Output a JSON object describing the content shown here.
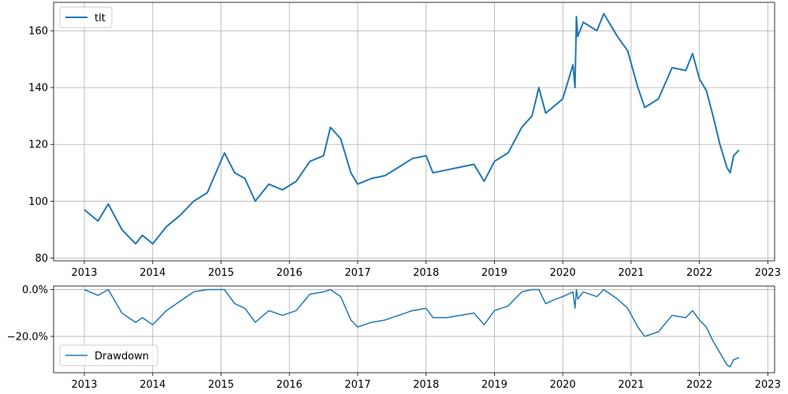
{
  "chart_data": [
    {
      "type": "line",
      "series": [
        {
          "name": "tlt",
          "x": [
            2013.0,
            2013.2,
            2013.35,
            2013.55,
            2013.75,
            2013.85,
            2014.0,
            2014.2,
            2014.4,
            2014.6,
            2014.8,
            2015.05,
            2015.2,
            2015.35,
            2015.5,
            2015.7,
            2015.9,
            2016.1,
            2016.3,
            2016.5,
            2016.6,
            2016.75,
            2016.9,
            2017.0,
            2017.2,
            2017.4,
            2017.6,
            2017.8,
            2018.0,
            2018.1,
            2018.3,
            2018.5,
            2018.7,
            2018.85,
            2019.0,
            2019.2,
            2019.4,
            2019.55,
            2019.65,
            2019.75,
            2019.9,
            2020.0,
            2020.15,
            2020.18,
            2020.2,
            2020.22,
            2020.3,
            2020.5,
            2020.6,
            2020.8,
            2020.95,
            2021.1,
            2021.2,
            2021.4,
            2021.6,
            2021.8,
            2021.9,
            2022.0,
            2022.1,
            2022.2,
            2022.3,
            2022.4,
            2022.45,
            2022.5,
            2022.58
          ],
          "values": [
            97,
            93,
            99,
            90,
            85,
            88,
            85,
            91,
            95,
            100,
            103,
            117,
            110,
            108,
            100,
            106,
            104,
            107,
            114,
            116,
            126,
            122,
            110,
            106,
            108,
            109,
            112,
            115,
            116,
            110,
            111,
            112,
            113,
            107,
            114,
            117,
            126,
            130,
            140,
            131,
            134,
            136,
            148,
            140,
            165,
            158,
            163,
            160,
            166,
            158,
            153,
            140,
            133,
            136,
            147,
            146,
            152,
            143,
            139,
            130,
            120,
            112,
            110,
            116,
            118
          ]
        }
      ],
      "legend": "upper-left",
      "grid": true,
      "xlim": [
        2012.55,
        2023.1
      ],
      "ylim": [
        79,
        170
      ],
      "xticks": [
        "2013",
        "2014",
        "2015",
        "2016",
        "2017",
        "2018",
        "2019",
        "2020",
        "2021",
        "2022",
        "2023"
      ],
      "yticks": [
        "80",
        "100",
        "120",
        "140",
        "160"
      ],
      "title": "",
      "xlabel": "",
      "ylabel": ""
    },
    {
      "type": "line",
      "series": [
        {
          "name": "Drawdown",
          "x": [
            2013.0,
            2013.2,
            2013.35,
            2013.55,
            2013.75,
            2013.85,
            2014.0,
            2014.2,
            2014.4,
            2014.6,
            2014.8,
            2015.05,
            2015.2,
            2015.35,
            2015.5,
            2015.7,
            2015.9,
            2016.1,
            2016.3,
            2016.5,
            2016.6,
            2016.75,
            2016.9,
            2017.0,
            2017.2,
            2017.4,
            2017.6,
            2017.8,
            2018.0,
            2018.1,
            2018.3,
            2018.5,
            2018.7,
            2018.85,
            2019.0,
            2019.2,
            2019.4,
            2019.55,
            2019.65,
            2019.75,
            2019.9,
            2020.0,
            2020.15,
            2020.18,
            2020.2,
            2020.22,
            2020.3,
            2020.5,
            2020.6,
            2020.8,
            2020.95,
            2021.1,
            2021.2,
            2021.4,
            2021.6,
            2021.8,
            2021.9,
            2022.0,
            2022.1,
            2022.2,
            2022.3,
            2022.4,
            2022.45,
            2022.5,
            2022.58
          ],
          "values": [
            0.0,
            -2.5,
            0.0,
            -10.0,
            -14.0,
            -12.0,
            -15.0,
            -9.0,
            -5.0,
            -1.0,
            0.0,
            0.0,
            -6.0,
            -8.0,
            -14.0,
            -9.0,
            -11.0,
            -9.0,
            -2.0,
            -1.0,
            0.0,
            -3.0,
            -13.0,
            -16.0,
            -14.0,
            -13.0,
            -11.0,
            -9.0,
            -8.0,
            -12.0,
            -12.0,
            -11.0,
            -10.0,
            -15.0,
            -9.0,
            -7.0,
            -1.0,
            0.0,
            0.0,
            -6.0,
            -4.0,
            -3.0,
            -1.0,
            -8.0,
            0.0,
            -4.0,
            -1.0,
            -3.0,
            0.0,
            -4.0,
            -8.0,
            -16.0,
            -20.0,
            -18.0,
            -11.0,
            -12.0,
            -9.0,
            -13.0,
            -16.0,
            -22.0,
            -27.0,
            -32.0,
            -33.0,
            -30.0,
            -29.0
          ]
        }
      ],
      "legend": "lower-left",
      "grid": true,
      "xlim": [
        2012.55,
        2023.1
      ],
      "ylim": [
        -35.5,
        1.5
      ],
      "xticks": [
        "2013",
        "2014",
        "2015",
        "2016",
        "2017",
        "2018",
        "2019",
        "2020",
        "2021",
        "2022",
        "2023"
      ],
      "yticks": [
        "0.0%",
        "−20.0%"
      ],
      "title": "",
      "xlabel": "",
      "ylabel": ""
    }
  ],
  "colors": {
    "line": "#1f77b4",
    "grid": "#b0b0b0",
    "axes": "#000000"
  }
}
